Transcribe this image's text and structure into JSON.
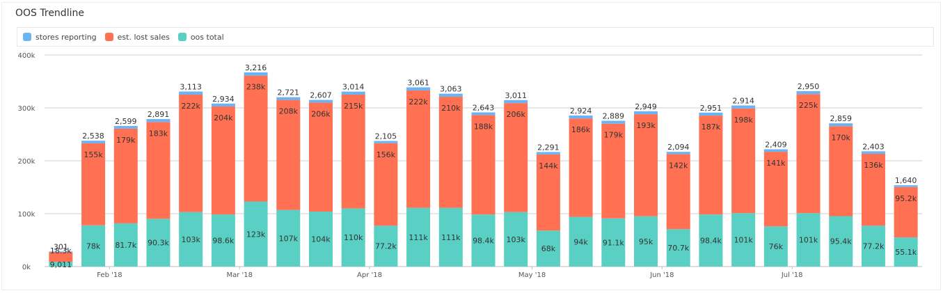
{
  "chart_data": {
    "type": "bar",
    "stacked": true,
    "title": "OOS Trendline",
    "colors": {
      "stores reporting": "#6cb3f4",
      "est. lost sales": "#ff7152",
      "oos total": "#5ad0c4"
    },
    "ylim": [
      0,
      400000
    ],
    "y_ticks": [
      0,
      100000,
      200000,
      300000,
      400000
    ],
    "y_tick_labels": [
      "0k",
      "100k",
      "200k",
      "300k",
      "400k"
    ],
    "x_tick_labels": [
      {
        "label": "Feb '18",
        "after_bar": 1
      },
      {
        "label": "Mar '18",
        "after_bar": 5
      },
      {
        "label": "Apr '18",
        "after_bar": 9
      },
      {
        "label": "May '18",
        "after_bar": 14
      },
      {
        "label": "Jun '18",
        "after_bar": 18
      },
      {
        "label": "Jul '18",
        "after_bar": 22
      }
    ],
    "grid": true,
    "legend_position": "top-left",
    "series": [
      {
        "name": "oos total",
        "values": [
          9011,
          78000,
          81700,
          90300,
          103000,
          98600,
          123000,
          107000,
          104000,
          110000,
          77200,
          111000,
          111000,
          98400,
          103000,
          68000,
          94000,
          91100,
          95000,
          70700,
          98400,
          101000,
          76000,
          101000,
          95400,
          77200,
          55100
        ],
        "labels": [
          "9,011",
          "78k",
          "81.7k",
          "90.3k",
          "103k",
          "98.6k",
          "123k",
          "107k",
          "104k",
          "110k",
          "77.2k",
          "111k",
          "111k",
          "98.4k",
          "103k",
          "68k",
          "94k",
          "91.1k",
          "95k",
          "70.7k",
          "98.4k",
          "101k",
          "76k",
          "101k",
          "95.4k",
          "77.2k",
          "55.1k"
        ]
      },
      {
        "name": "est. lost sales",
        "values": [
          18300,
          155000,
          179000,
          183000,
          222000,
          204000,
          238000,
          208000,
          206000,
          215000,
          156000,
          222000,
          210000,
          188000,
          206000,
          144000,
          186000,
          179000,
          193000,
          142000,
          187000,
          198000,
          141000,
          225000,
          170000,
          136000,
          95200
        ],
        "labels": [
          "18.3k",
          "155k",
          "179k",
          "183k",
          "222k",
          "204k",
          "238k",
          "208k",
          "206k",
          "215k",
          "156k",
          "222k",
          "210k",
          "188k",
          "206k",
          "144k",
          "186k",
          "179k",
          "193k",
          "142k",
          "187k",
          "198k",
          "141k",
          "225k",
          "170k",
          "136k",
          "95.2k"
        ]
      },
      {
        "name": "stores reporting",
        "values": [
          301,
          2538,
          2599,
          2891,
          3113,
          2934,
          3216,
          2721,
          2607,
          3014,
          2105,
          3061,
          3063,
          2643,
          3011,
          2291,
          2924,
          2889,
          2949,
          2094,
          2951,
          2914,
          2409,
          2950,
          2859,
          2403,
          1640
        ],
        "labels": [
          "301",
          "2,538",
          "2,599",
          "2,891",
          "3,113",
          "2,934",
          "3,216",
          "2,721",
          "2,607",
          "3,014",
          "2,105",
          "3,061",
          "3,063",
          "2,643",
          "3,011",
          "2,291",
          "2,924",
          "2,889",
          "2,949",
          "2,094",
          "2,951",
          "2,914",
          "2,409",
          "2,950",
          "2,859",
          "2,403",
          "1,640"
        ]
      }
    ]
  }
}
